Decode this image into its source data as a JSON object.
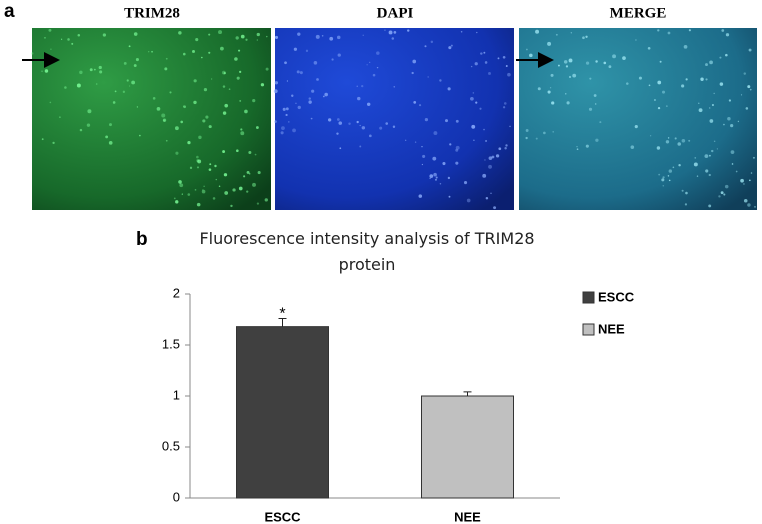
{
  "panels": {
    "a": {
      "label": "a",
      "images": [
        "TRIM28",
        "DAPI",
        "MERGE"
      ]
    },
    "b": {
      "label": "b"
    }
  },
  "chart_data": {
    "type": "bar",
    "title": "Fluorescence intensity analysis of TRIM28 protein",
    "categories": [
      "ESCC",
      "NEE"
    ],
    "series": [
      {
        "name": "ESCC",
        "color": "#404040",
        "values": [
          1.68,
          null
        ],
        "errors": [
          0.08,
          null
        ]
      },
      {
        "name": "NEE",
        "color": "#c0c0c0",
        "values": [
          null,
          1.0
        ],
        "errors": [
          null,
          0.04
        ]
      }
    ],
    "annotations": [
      {
        "text": "*",
        "category": 0
      }
    ],
    "ylim": [
      0,
      2
    ],
    "yticks": [
      0,
      0.5,
      1,
      1.5,
      2
    ],
    "grid": false,
    "legend": "right"
  }
}
